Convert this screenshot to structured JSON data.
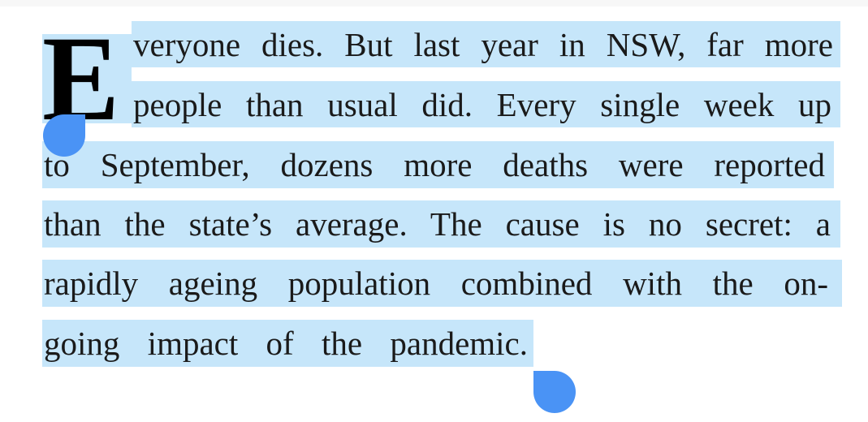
{
  "article": {
    "drop_cap": "E",
    "lines": [
      "veryone dies. But last year in NSW, far more",
      "people than usual did. Every single week up",
      "to September, dozens more deaths were reported",
      "than the state’s average. The cause is no secret: a",
      "rapidly ageing population combined with the on-",
      "going impact of the pandemic."
    ]
  },
  "selection": {
    "highlight_color": "#c6e6fa",
    "handle_color": "#4a93f5"
  }
}
